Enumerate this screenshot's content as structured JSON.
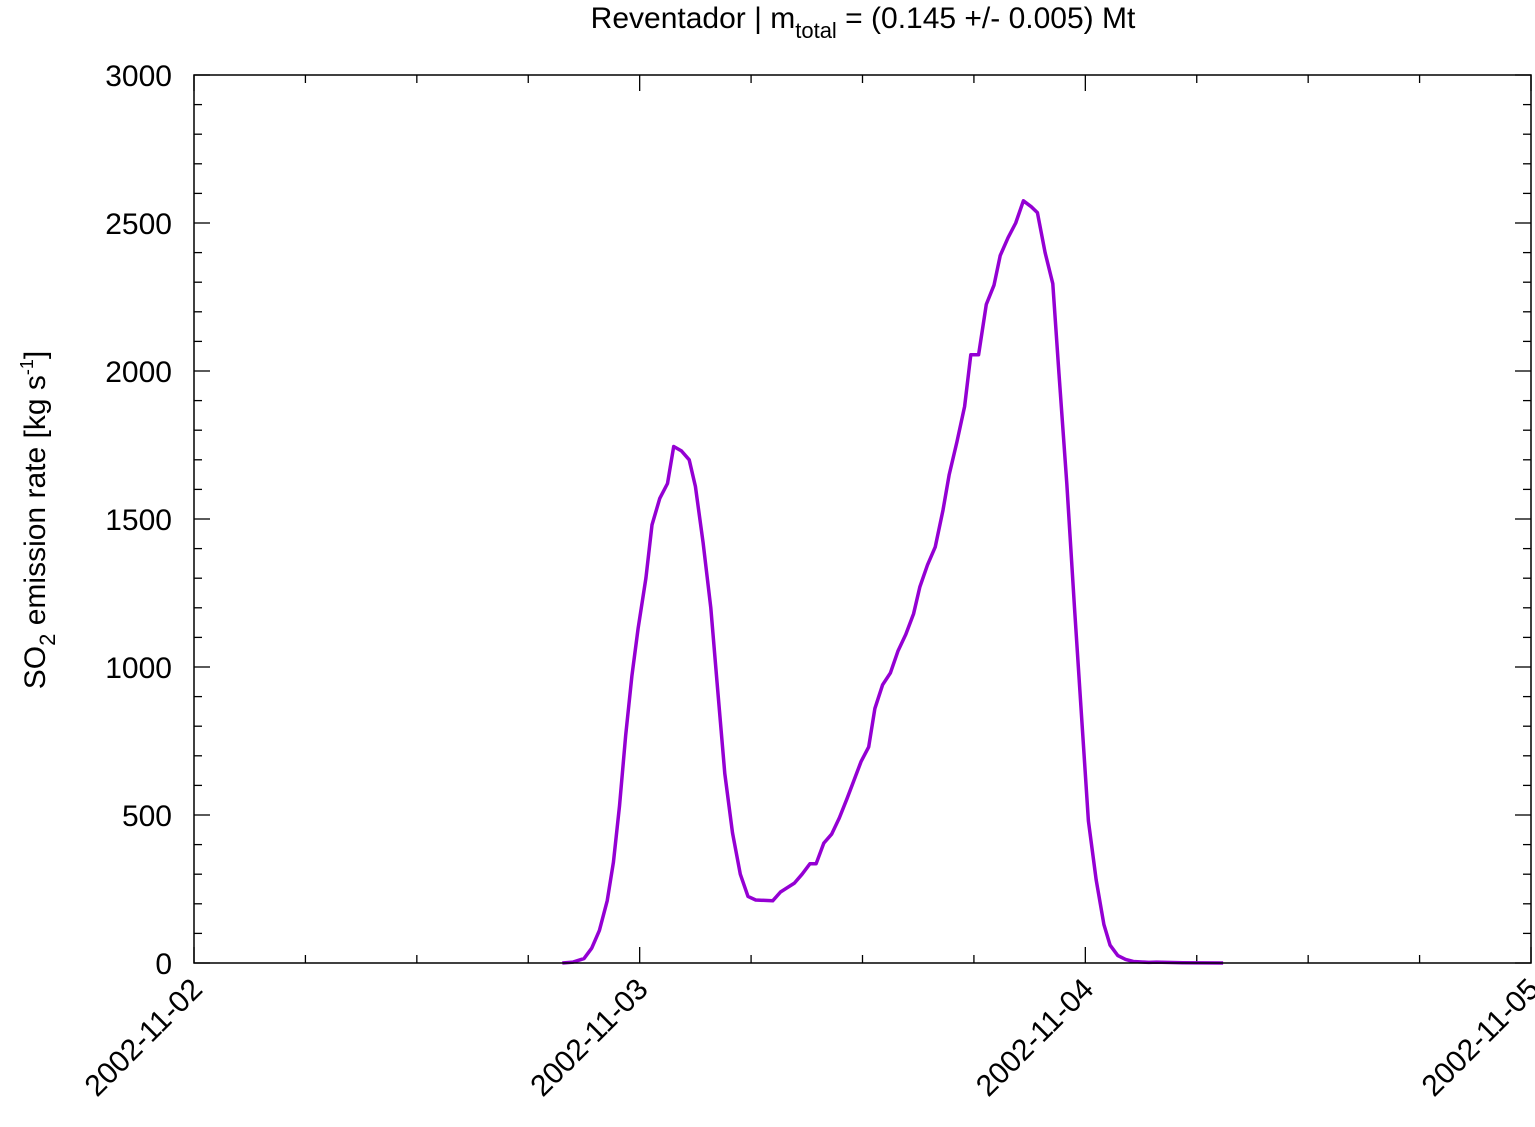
{
  "chart_data": {
    "type": "line",
    "title": {
      "prefix": "Reventador | m",
      "subscript": "total",
      "suffix": " = (0.145 +/- 0.005) Mt"
    },
    "ylabel": {
      "prefix": "SO",
      "subscript": "2",
      "middle": " emission rate [kg s",
      "superscript": "-1",
      "suffix": "]"
    },
    "xlabel": "",
    "x_ticks": [
      "2002-11-02",
      "2002-11-03",
      "2002-11-04",
      "2002-11-05"
    ],
    "y_ticks": [
      "0",
      "500",
      "1000",
      "1500",
      "2000",
      "2500",
      "3000"
    ],
    "xlim": [
      "2002-11-02 00:00",
      "2002-11-05 00:00"
    ],
    "ylim": [
      0,
      3000
    ],
    "grid": false,
    "series": [
      {
        "color": "#9400d3",
        "points": [
          [
            "2002-11-02 19:50",
            0
          ],
          [
            "2002-11-02 20:25",
            3
          ],
          [
            "2002-11-02 21:00",
            15
          ],
          [
            "2002-11-02 21:25",
            50
          ],
          [
            "2002-11-02 21:50",
            110
          ],
          [
            "2002-11-02 22:15",
            210
          ],
          [
            "2002-11-02 22:35",
            340
          ],
          [
            "2002-11-02 22:55",
            530
          ],
          [
            "2002-11-02 23:15",
            770
          ],
          [
            "2002-11-02 23:35",
            970
          ],
          [
            "2002-11-02 23:55",
            1130
          ],
          [
            "2002-11-03 00:20",
            1300
          ],
          [
            "2002-11-03 00:40",
            1480
          ],
          [
            "2002-11-03 01:05",
            1570
          ],
          [
            "2002-11-03 01:30",
            1620
          ],
          [
            "2002-11-03 01:50",
            1745
          ],
          [
            "2002-11-03 02:15",
            1730
          ],
          [
            "2002-11-03 02:40",
            1700
          ],
          [
            "2002-11-03 03:00",
            1610
          ],
          [
            "2002-11-03 03:25",
            1420
          ],
          [
            "2002-11-03 03:50",
            1200
          ],
          [
            "2002-11-03 04:10",
            950
          ],
          [
            "2002-11-03 04:35",
            640
          ],
          [
            "2002-11-03 05:00",
            440
          ],
          [
            "2002-11-03 05:25",
            300
          ],
          [
            "2002-11-03 05:50",
            225
          ],
          [
            "2002-11-03 06:15",
            213
          ],
          [
            "2002-11-03 07:10",
            210
          ],
          [
            "2002-11-03 07:35",
            240
          ],
          [
            "2002-11-03 08:20",
            270
          ],
          [
            "2002-11-03 08:45",
            300
          ],
          [
            "2002-11-03 09:10",
            335
          ],
          [
            "2002-11-03 09:30",
            335
          ],
          [
            "2002-11-03 09:55",
            405
          ],
          [
            "2002-11-03 10:20",
            435
          ],
          [
            "2002-11-03 10:45",
            490
          ],
          [
            "2002-11-03 11:10",
            555
          ],
          [
            "2002-11-03 11:30",
            610
          ],
          [
            "2002-11-03 11:55",
            680
          ],
          [
            "2002-11-03 12:20",
            730
          ],
          [
            "2002-11-03 12:40",
            860
          ],
          [
            "2002-11-03 13:05",
            940
          ],
          [
            "2002-11-03 13:30",
            980
          ],
          [
            "2002-11-03 13:55",
            1055
          ],
          [
            "2002-11-03 14:20",
            1110
          ],
          [
            "2002-11-03 14:45",
            1180
          ],
          [
            "2002-11-03 15:05",
            1270
          ],
          [
            "2002-11-03 15:30",
            1345
          ],
          [
            "2002-11-03 15:55",
            1405
          ],
          [
            "2002-11-03 16:20",
            1530
          ],
          [
            "2002-11-03 16:40",
            1650
          ],
          [
            "2002-11-03 17:05",
            1760
          ],
          [
            "2002-11-03 17:30",
            1880
          ],
          [
            "2002-11-03 17:50",
            2055
          ],
          [
            "2002-11-03 18:15",
            2055
          ],
          [
            "2002-11-03 18:40",
            2225
          ],
          [
            "2002-11-03 19:05",
            2290
          ],
          [
            "2002-11-03 19:25",
            2390
          ],
          [
            "2002-11-03 19:50",
            2450
          ],
          [
            "2002-11-03 20:15",
            2500
          ],
          [
            "2002-11-03 20:40",
            2575
          ],
          [
            "2002-11-03 21:05",
            2555
          ],
          [
            "2002-11-03 21:25",
            2535
          ],
          [
            "2002-11-03 21:50",
            2400
          ],
          [
            "2002-11-03 22:15",
            2295
          ],
          [
            "2002-11-03 22:35",
            1990
          ],
          [
            "2002-11-03 23:00",
            1620
          ],
          [
            "2002-11-03 23:25",
            1200
          ],
          [
            "2002-11-03 23:50",
            800
          ],
          [
            "2002-11-04 00:10",
            480
          ],
          [
            "2002-11-04 00:35",
            280
          ],
          [
            "2002-11-04 01:00",
            130
          ],
          [
            "2002-11-04 01:20",
            60
          ],
          [
            "2002-11-04 01:45",
            25
          ],
          [
            "2002-11-04 02:10",
            12
          ],
          [
            "2002-11-04 02:35",
            5
          ],
          [
            "2002-11-04 03:25",
            2
          ],
          [
            "2002-11-04 03:50",
            3
          ],
          [
            "2002-11-04 05:15",
            1
          ],
          [
            "2002-11-04 07:25",
            0
          ]
        ]
      }
    ]
  }
}
